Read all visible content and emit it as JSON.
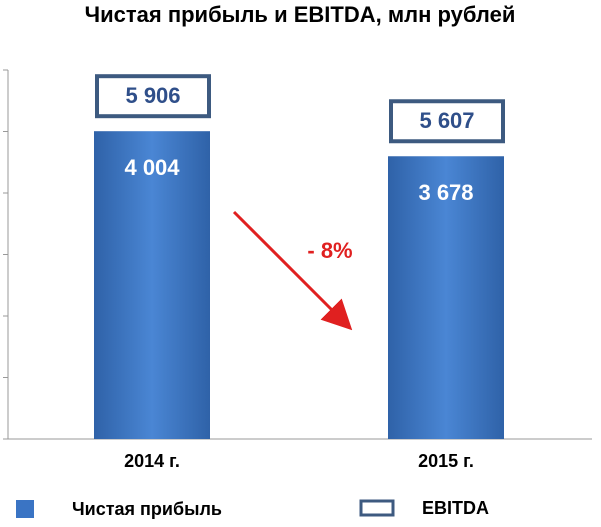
{
  "chart_data": {
    "type": "bar",
    "title": "Чистая прибыль и EBITDA, млн рублей",
    "categories": [
      "2014 г.",
      "2015 г."
    ],
    "series": [
      {
        "name": "Чистая прибыль",
        "color": "#3a74c4",
        "values": [
          4004,
          3678
        ],
        "value_labels": [
          "4 004",
          "3 678"
        ]
      },
      {
        "name": "EBITDA",
        "color": "#3d5a80",
        "values": [
          5906,
          5607
        ],
        "value_labels": [
          "5 906",
          "5 607"
        ]
      }
    ],
    "annotations": [
      "- 8%"
    ],
    "ylim": [
      0,
      4800
    ],
    "yticks": [
      0,
      800,
      1600,
      2400,
      3200,
      4000,
      4800
    ]
  }
}
